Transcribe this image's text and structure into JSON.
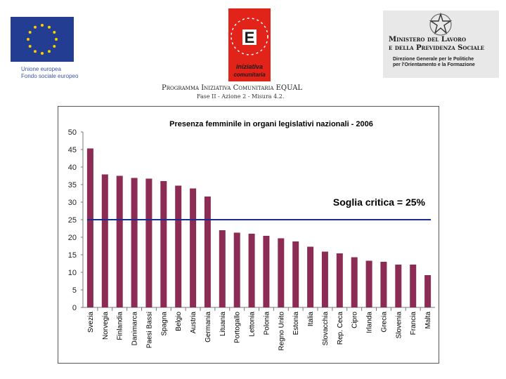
{
  "header": {
    "eu_caption_line1": "Unione europea",
    "eu_caption_line2": "Fondo sociale europeo",
    "equal_letter": "E",
    "equal_word1": "iniziativa",
    "equal_word2": "comunitaria",
    "ministry_line1": "Ministero del Lavoro",
    "ministry_line2": "e della Previdenza Sociale",
    "ministry_sub1": "Direzione Generale per le Politiche",
    "ministry_sub2": "per l'Orientamento e la Formazione",
    "programma": "Programma Iniziativa Comunitaria EQUAL",
    "fase": "Fase II - Azione 2 - Misura 4.2."
  },
  "chart_data": {
    "type": "bar",
    "title": "Presenza femminile in organi legislativi nazionali - 2006",
    "categories": [
      "Svezia",
      "Norvegia",
      "Finlandia",
      "Danimarca",
      "Paesi Bassi",
      "Spagna",
      "Belgio",
      "Austria",
      "Germania",
      "Lituania",
      "Portogallo",
      "Lettonia",
      "Polonia",
      "Regno Unito",
      "Estonia",
      "Italia",
      "Slovacchia",
      "Rep. Ceca",
      "Cipro",
      "Irlanda",
      "Grecia",
      "Slovenia",
      "Francia",
      "Malta"
    ],
    "values": [
      45.3,
      37.9,
      37.5,
      36.9,
      36.7,
      36.0,
      34.7,
      33.9,
      31.6,
      22.0,
      21.3,
      21.0,
      20.4,
      19.7,
      18.8,
      17.3,
      15.9,
      15.4,
      14.3,
      13.3,
      13.0,
      12.2,
      12.2,
      9.2
    ],
    "ylim": [
      0,
      50
    ],
    "yticks": [
      0,
      5,
      10,
      15,
      20,
      25,
      30,
      35,
      40,
      45,
      50
    ],
    "threshold": 25,
    "threshold_label": "Soglia critica = 25%",
    "xlabel": "",
    "ylabel": "",
    "grid": false,
    "colors": {
      "bar": "#8c2c55",
      "threshold": "#1a2d8c"
    }
  }
}
